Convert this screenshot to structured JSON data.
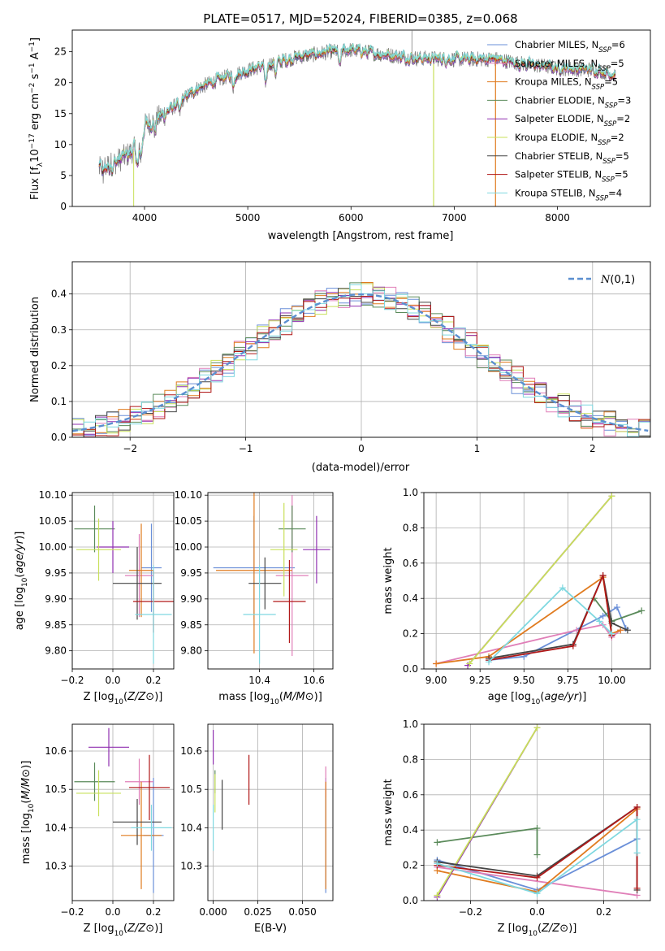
{
  "title": "PLATE=0517, MJD=52024, FIBERID=0385, z=0.068",
  "colors": {
    "Chabrier MILES": "#6a8fd8",
    "Salpeter MILES": "#e07fb8",
    "Kroupa MILES": "#e07b1f",
    "Chabrier ELODIE": "#5a8a5a",
    "Salpeter ELODIE": "#9030b0",
    "Kroupa ELODIE": "#c8e05a",
    "Chabrier STELIB": "#444444",
    "Salpeter STELIB": "#b01818",
    "Kroupa STELIB": "#7fd8e0",
    "data": "#808080",
    "normal": "#5b8fd0"
  },
  "chart_data": [
    {
      "type": "line",
      "panel": "spectrum",
      "xlabel": "wavelength [Angstrom, rest frame]",
      "ylabel_parts": [
        "Flux [f",
        "λ",
        "10",
        "−17",
        " erg cm",
        "−2",
        " s",
        "−1",
        " A",
        "−1",
        "]"
      ],
      "xlim": [
        3300,
        8900
      ],
      "ylim": [
        0,
        28.5
      ],
      "xticks": [
        4000,
        5000,
        6000,
        7000,
        8000
      ],
      "yticks": [
        0,
        5,
        10,
        15,
        20,
        25
      ],
      "continuum_knots": [
        [
          3560,
          6
        ],
        [
          3700,
          7
        ],
        [
          3850,
          8.5
        ],
        [
          3950,
          10
        ],
        [
          4000,
          13
        ],
        [
          4200,
          15
        ],
        [
          4500,
          19
        ],
        [
          4800,
          21
        ],
        [
          5000,
          22
        ],
        [
          5200,
          23
        ],
        [
          5500,
          24.2
        ],
        [
          5800,
          25
        ],
        [
          6000,
          25.3
        ],
        [
          6300,
          24.6
        ],
        [
          6600,
          24
        ],
        [
          7000,
          23.8
        ],
        [
          7400,
          23.8
        ],
        [
          7600,
          23.2
        ],
        [
          8000,
          22.4
        ],
        [
          8400,
          22
        ],
        [
          8560,
          21.2
        ]
      ],
      "legend": [
        {
          "name": "Chabrier MILES",
          "label": "Chabrier MILES, N",
          "sub": "SSP",
          "tail": "=6"
        },
        {
          "name": "Salpeter MILES",
          "label": "Salpeter MILES, N",
          "sub": "SSP",
          "tail": "=5"
        },
        {
          "name": "Kroupa MILES",
          "label": "Kroupa MILES, N",
          "sub": "SSP",
          "tail": "=5"
        },
        {
          "name": "Chabrier ELODIE",
          "label": "Chabrier ELODIE, N",
          "sub": "SSP",
          "tail": "=3"
        },
        {
          "name": "Salpeter ELODIE",
          "label": "Salpeter ELODIE, N",
          "sub": "SSP",
          "tail": "=2"
        },
        {
          "name": "Kroupa ELODIE",
          "label": "Kroupa ELODIE, N",
          "sub": "SSP",
          "tail": "=2"
        },
        {
          "name": "Chabrier STELIB",
          "label": "Chabrier STELIB, N",
          "sub": "SSP",
          "tail": "=5"
        },
        {
          "name": "Salpeter STELIB",
          "label": "Salpeter STELIB, N",
          "sub": "SSP",
          "tail": "=5"
        },
        {
          "name": "Kroupa STELIB",
          "label": "Kroupa STELIB, N",
          "sub": "SSP",
          "tail": "=4"
        }
      ]
    },
    {
      "type": "histogram",
      "panel": "residuals",
      "xlabel": "(data-model)/error",
      "ylabel": "Normed distribution",
      "xlim": [
        -2.5,
        2.5
      ],
      "ylim": [
        0,
        0.49
      ],
      "xticks": [
        -2,
        -1,
        0,
        1,
        2
      ],
      "yticks": [
        0.0,
        0.1,
        0.2,
        0.3,
        0.4
      ],
      "bin_width": 0.1,
      "normal_label": "N(0,1)"
    },
    {
      "type": "scatter",
      "panel": "Z-age",
      "xlabel": "Z [log10(Z/Z⊙)]",
      "ylabel": "age  [log10(age/yr)]",
      "xlim": [
        -0.2,
        0.3
      ],
      "ylim": [
        9.765,
        10.105
      ],
      "xticks": [
        -0.2,
        0.0,
        0.2
      ],
      "yticks": [
        9.8,
        9.85,
        9.9,
        9.95,
        10.0,
        10.05,
        10.1
      ],
      "points": [
        {
          "name": "Chabrier MILES",
          "x": 0.19,
          "y": 9.96,
          "xe": 0.05,
          "ye": 0.085
        },
        {
          "name": "Salpeter MILES",
          "x": 0.13,
          "y": 9.945,
          "xe": 0.07,
          "ye": 0.08
        },
        {
          "name": "Kroupa MILES",
          "x": 0.14,
          "y": 9.955,
          "xe": 0.06,
          "ye": 0.09
        },
        {
          "name": "Chabrier ELODIE",
          "x": -0.09,
          "y": 10.035,
          "xe": 0.1,
          "ye": 0.045
        },
        {
          "name": "Salpeter ELODIE",
          "x": 0.0,
          "y": 10.0,
          "xe": 0.08,
          "ye": 0.05
        },
        {
          "name": "Kroupa ELODIE",
          "x": -0.07,
          "y": 9.995,
          "xe": 0.11,
          "ye": 0.06
        },
        {
          "name": "Chabrier STELIB",
          "x": 0.12,
          "y": 9.93,
          "xe": 0.12,
          "ye": 0.07
        },
        {
          "name": "Salpeter STELIB",
          "x": 0.2,
          "y": 9.895,
          "xe": 0.1,
          "ye": 0.06
        },
        {
          "name": "Kroupa STELIB",
          "x": 0.2,
          "y": 9.87,
          "xe": 0.09,
          "ye": 0.095
        }
      ]
    },
    {
      "type": "scatter",
      "panel": "mass-age",
      "xlabel": "mass [log10(M/M⊙)]",
      "xlim": [
        10.21,
        10.67
      ],
      "ylim": [
        9.765,
        10.105
      ],
      "xticks": [
        10.4,
        10.6
      ],
      "yticks": [
        9.8,
        9.85,
        9.9,
        9.95,
        10.0,
        10.05,
        10.1
      ],
      "points": [
        {
          "name": "Chabrier MILES",
          "x": 10.38,
          "y": 9.96,
          "xe": 0.15,
          "ye": 0.1
        },
        {
          "name": "Salpeter MILES",
          "x": 10.52,
          "y": 9.945,
          "xe": 0.06,
          "ye": 0.155
        },
        {
          "name": "Kroupa MILES",
          "x": 10.38,
          "y": 9.955,
          "xe": 0.14,
          "ye": 0.16
        },
        {
          "name": "Chabrier ELODIE",
          "x": 10.52,
          "y": 10.035,
          "xe": 0.05,
          "ye": 0.045
        },
        {
          "name": "Salpeter ELODIE",
          "x": 10.61,
          "y": 9.995,
          "xe": 0.05,
          "ye": 0.065
        },
        {
          "name": "Kroupa ELODIE",
          "x": 10.49,
          "y": 9.995,
          "xe": 0.05,
          "ye": 0.09
        },
        {
          "name": "Chabrier STELIB",
          "x": 10.42,
          "y": 9.93,
          "xe": 0.06,
          "ye": 0.05
        },
        {
          "name": "Salpeter STELIB",
          "x": 10.51,
          "y": 9.895,
          "xe": 0.06,
          "ye": 0.08
        },
        {
          "name": "Kroupa STELIB",
          "x": 10.4,
          "y": 9.87,
          "xe": 0.06,
          "ye": 0.095
        }
      ]
    },
    {
      "type": "line",
      "panel": "age-weight",
      "xlabel": "age  [log10(age/yr)]",
      "ylabel": "mass weight",
      "xlim": [
        8.93,
        10.22
      ],
      "ylim": [
        0,
        1.0
      ],
      "xticks": [
        9.0,
        9.25,
        9.5,
        9.75,
        10.0
      ],
      "yticks": [
        0.0,
        0.2,
        0.4,
        0.6,
        0.8,
        1.0
      ],
      "series": [
        {
          "name": "Chabrier MILES",
          "x": [
            9.3,
            9.5,
            9.95,
            10.03,
            10.08
          ],
          "y": [
            0.05,
            0.07,
            0.3,
            0.35,
            0.23
          ]
        },
        {
          "name": "Salpeter MILES",
          "x": [
            9.0,
            9.8,
            9.95,
            10.0,
            10.05
          ],
          "y": [
            0.03,
            0.22,
            0.25,
            0.18,
            0.22
          ]
        },
        {
          "name": "Kroupa MILES",
          "x": [
            9.0,
            9.3,
            9.95,
            10.0,
            10.05
          ],
          "y": [
            0.03,
            0.07,
            0.52,
            0.2,
            0.22
          ]
        },
        {
          "name": "Chabrier ELODIE",
          "x": [
            9.9,
            10.0,
            10.17
          ],
          "y": [
            0.4,
            0.27,
            0.33
          ]
        },
        {
          "name": "Salpeter ELODIE",
          "x": [
            9.18,
            10.0
          ],
          "y": [
            0.02,
            0.98
          ]
        },
        {
          "name": "Kroupa ELODIE",
          "x": [
            9.19,
            10.0
          ],
          "y": [
            0.03,
            0.98
          ]
        },
        {
          "name": "Chabrier STELIB",
          "x": [
            9.3,
            9.78,
            9.95,
            10.0,
            10.09
          ],
          "y": [
            0.06,
            0.14,
            0.53,
            0.26,
            0.22
          ]
        },
        {
          "name": "Salpeter STELIB",
          "x": [
            9.3,
            9.78,
            9.95,
            10.0
          ],
          "y": [
            0.05,
            0.13,
            0.53,
            0.19
          ]
        },
        {
          "name": "Kroupa STELIB",
          "x": [
            9.3,
            9.72,
            9.93,
            10.0
          ],
          "y": [
            0.04,
            0.46,
            0.27,
            0.2
          ]
        }
      ]
    },
    {
      "type": "scatter",
      "panel": "Z-mass",
      "xlabel": "Z [log10(Z/Z⊙)]",
      "ylabel": "mass [log10(M/M⊙)]",
      "xlim": [
        -0.2,
        0.3
      ],
      "ylim": [
        10.21,
        10.67
      ],
      "xticks": [
        -0.2,
        0.0,
        0.2
      ],
      "yticks": [
        10.3,
        10.4,
        10.5,
        10.6
      ],
      "points": [
        {
          "name": "Chabrier MILES",
          "x": 0.2,
          "y": 10.38,
          "xe": 0.05,
          "ye": 0.15
        },
        {
          "name": "Salpeter MILES",
          "x": 0.13,
          "y": 10.52,
          "xe": 0.07,
          "ye": 0.06
        },
        {
          "name": "Kroupa MILES",
          "x": 0.14,
          "y": 10.38,
          "xe": 0.1,
          "ye": 0.14
        },
        {
          "name": "Chabrier ELODIE",
          "x": -0.09,
          "y": 10.52,
          "xe": 0.1,
          "ye": 0.05
        },
        {
          "name": "Salpeter ELODIE",
          "x": -0.02,
          "y": 10.61,
          "xe": 0.1,
          "ye": 0.05
        },
        {
          "name": "Kroupa ELODIE",
          "x": -0.07,
          "y": 10.49,
          "xe": 0.11,
          "ye": 0.06
        },
        {
          "name": "Chabrier STELIB",
          "x": 0.12,
          "y": 10.415,
          "xe": 0.12,
          "ye": 0.06
        },
        {
          "name": "Salpeter STELIB",
          "x": 0.18,
          "y": 10.505,
          "xe": 0.1,
          "ye": 0.085
        },
        {
          "name": "Kroupa STELIB",
          "x": 0.19,
          "y": 10.4,
          "xe": 0.1,
          "ye": 0.06
        }
      ]
    },
    {
      "type": "scatter",
      "panel": "ebv-mass",
      "xlabel": "E(B-V)",
      "xlim": [
        -0.003,
        0.067
      ],
      "ylim": [
        10.21,
        10.67
      ],
      "xticks": [
        0.0,
        0.025,
        0.05
      ],
      "yticks": [
        10.3,
        10.4,
        10.5,
        10.6
      ],
      "points": [
        {
          "name": "Chabrier MILES",
          "x": 0.063,
          "y": 10.38,
          "xe": 0,
          "ye": 0.15
        },
        {
          "name": "Salpeter MILES",
          "x": 0.063,
          "y": 10.52,
          "xe": 0,
          "ye": 0.04
        },
        {
          "name": "Kroupa MILES",
          "x": 0.063,
          "y": 10.38,
          "xe": 0,
          "ye": 0.14
        },
        {
          "name": "Chabrier ELODIE",
          "x": 0.001,
          "y": 10.52,
          "xe": 0,
          "ye": 0.03
        },
        {
          "name": "Salpeter ELODIE",
          "x": 0.0,
          "y": 10.61,
          "xe": 0,
          "ye": 0.045
        },
        {
          "name": "Kroupa ELODIE",
          "x": 0.001,
          "y": 10.49,
          "xe": 0,
          "ye": 0.05
        },
        {
          "name": "Chabrier STELIB",
          "x": 0.005,
          "y": 10.46,
          "xe": 0,
          "ye": 0.065
        },
        {
          "name": "Salpeter STELIB",
          "x": 0.02,
          "y": 10.525,
          "xe": 0,
          "ye": 0.065
        },
        {
          "name": "Kroupa STELIB",
          "x": 0.0,
          "y": 10.4,
          "xe": 0,
          "ye": 0.06
        }
      ]
    },
    {
      "type": "line",
      "panel": "Z-weight",
      "xlabel": "Z [log10(Z/Z⊙)]",
      "ylabel": "mass weight",
      "xlim": [
        -0.34,
        0.34
      ],
      "ylim": [
        0,
        1.0
      ],
      "xticks": [
        -0.2,
        0.0,
        0.2
      ],
      "yticks": [
        0.0,
        0.2,
        0.4,
        0.6,
        0.8,
        1.0
      ],
      "series": [
        {
          "name": "Chabrier MILES",
          "x": [
            -0.3,
            0.0,
            0.3
          ],
          "y": [
            0.23,
            0.06,
            0.35
          ]
        },
        {
          "name": "Salpeter MILES",
          "x": [
            -0.3,
            0.3
          ],
          "y": [
            0.19,
            0.03
          ]
        },
        {
          "name": "Kroupa MILES",
          "x": [
            -0.3,
            0.0,
            0.3
          ],
          "y": [
            0.17,
            0.05,
            0.52
          ]
        },
        {
          "name": "Chabrier ELODIE",
          "x": [
            -0.3,
            0.0,
            0.0
          ],
          "y": [
            0.33,
            0.41,
            0.26
          ]
        },
        {
          "name": "Salpeter ELODIE",
          "x": [
            -0.3,
            0.0
          ],
          "y": [
            0.02,
            0.98
          ]
        },
        {
          "name": "Kroupa ELODIE",
          "x": [
            -0.3,
            0.0
          ],
          "y": [
            0.03,
            0.98
          ]
        },
        {
          "name": "Chabrier STELIB",
          "x": [
            -0.3,
            0.0,
            0.3,
            0.3
          ],
          "y": [
            0.22,
            0.14,
            0.53,
            0.06
          ]
        },
        {
          "name": "Salpeter STELIB",
          "x": [
            -0.3,
            0.0,
            0.3,
            0.3
          ],
          "y": [
            0.2,
            0.13,
            0.53,
            0.07
          ]
        },
        {
          "name": "Kroupa STELIB",
          "x": [
            -0.3,
            0.0,
            0.3,
            0.3
          ],
          "y": [
            0.21,
            0.04,
            0.46,
            0.27
          ]
        }
      ]
    }
  ]
}
